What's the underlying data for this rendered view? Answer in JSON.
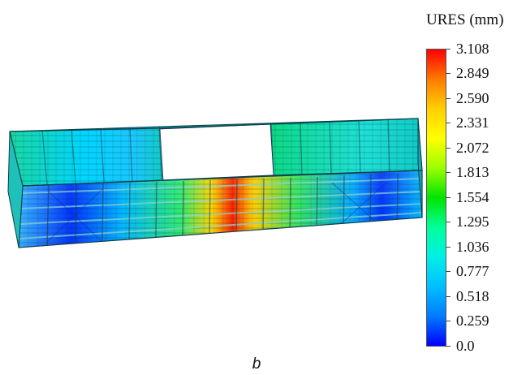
{
  "legend": {
    "title": "URES (mm)",
    "labels": [
      "3.108",
      "2.849",
      "2.590",
      "2.331",
      "2.072",
      "1.813",
      "1.554",
      "1.295",
      "1.036",
      "0.777",
      "0.518",
      "0.259",
      "0.0"
    ],
    "colors": [
      "#ff0000",
      "#ff7a00",
      "#ffd000",
      "#ffff00",
      "#9bff00",
      "#00e400",
      "#00ff9a",
      "#00f0e6",
      "#00bfff",
      "#007bff",
      "#0000ff"
    ]
  },
  "caption": "b"
}
